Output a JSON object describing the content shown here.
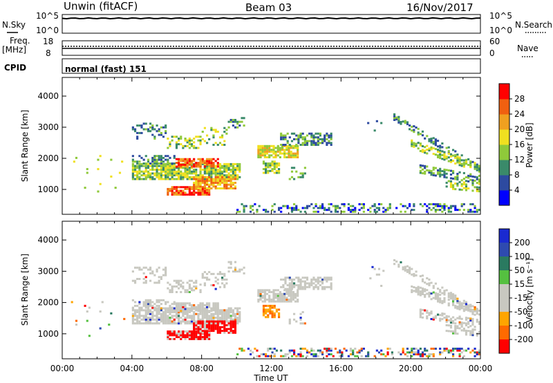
{
  "header": {
    "radar": "Unwin (fitACF)",
    "beam": "Beam 03",
    "date": "16/Nov/2017"
  },
  "summary_panels": {
    "nsky": {
      "left_label": "N.Sky",
      "left_ticks": [
        "10^5",
        "10^0"
      ],
      "right_ticks": [
        "10^5",
        "10^0"
      ],
      "right_label": "N.Search"
    },
    "freq": {
      "left_label_1": "Freq.",
      "left_label_2": "[MHz]",
      "left_ticks": [
        "18",
        "8"
      ],
      "right_ticks": [
        "60",
        "0"
      ],
      "right_label": "Nave"
    },
    "cpid": {
      "left_label": "CPID",
      "mode_text": "normal (fast) 151"
    }
  },
  "colors": {
    "power_scale": [
      "#0000ff",
      "#2d4aa0",
      "#3a8a6a",
      "#8fc93a",
      "#f0e020",
      "#f0a020",
      "#f06010",
      "#ff0000"
    ],
    "velocity_scale": [
      "#ff0000",
      "#ff6a00",
      "#ffa500",
      "#c8c8c0",
      "#c8c8c0",
      "#55c040",
      "#2a7a60",
      "#2e4ab0",
      "#1a2ad0"
    ]
  },
  "chart_data": [
    {
      "type": "heatmap",
      "panel": "power",
      "ylabel": "Slant Range [km]",
      "yticks": [
        1000,
        2000,
        3000,
        4000
      ],
      "ylim": [
        200,
        4600
      ],
      "xlim_hours": [
        0,
        24
      ],
      "colorbar": {
        "label": "Power [dB]",
        "ticks": [
          "4",
          "8",
          "12",
          "16",
          "20",
          "24",
          "28"
        ],
        "range": [
          0,
          32
        ]
      }
    },
    {
      "type": "heatmap",
      "panel": "velocity",
      "ylabel": "Slant Range [km]",
      "yticks": [
        1000,
        2000,
        3000,
        4000
      ],
      "ylim": [
        200,
        4600
      ],
      "xlim_hours": [
        0,
        24
      ],
      "colorbar": {
        "label": "Velocity [m s⁻¹]",
        "ticks": [
          "200",
          "100",
          "50",
          "15",
          "-15",
          "-50",
          "-100",
          "-200"
        ]
      }
    }
  ],
  "xaxis": {
    "label": "Time UT",
    "ticks": [
      "00:00",
      "04:00",
      "08:00",
      "12:00",
      "16:00",
      "20:00",
      "00:00"
    ]
  }
}
